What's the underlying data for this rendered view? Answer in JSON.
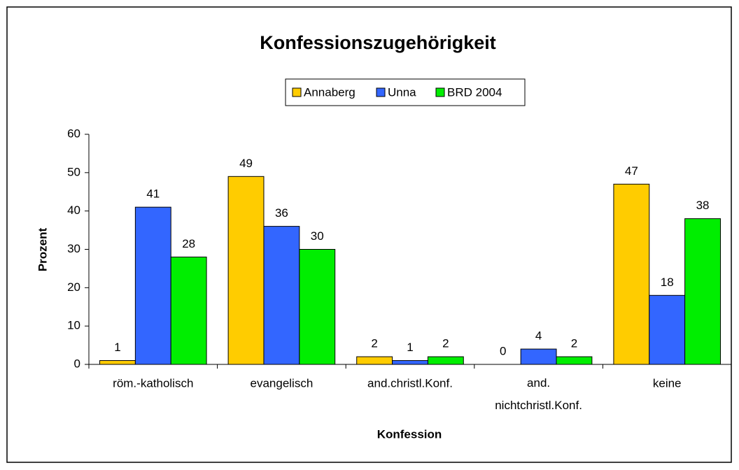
{
  "chart_data": {
    "type": "bar",
    "title": "Konfessionszugehörigkeit",
    "x_label": "Konfession",
    "y_label": "Prozent",
    "categories": [
      "röm.-katholisch",
      "evangelisch",
      "and.christl.Konf.",
      "and.\nnichtchristl.Konf.",
      "keine"
    ],
    "series": [
      {
        "name": "Annaberg",
        "color": "#ffcc00",
        "values": [
          1,
          49,
          2,
          0,
          47
        ]
      },
      {
        "name": "Unna",
        "color": "#3366ff",
        "values": [
          41,
          36,
          1,
          4,
          18
        ]
      },
      {
        "name": "BRD 2004",
        "color": "#00ee00",
        "values": [
          28,
          30,
          2,
          2,
          38
        ]
      }
    ],
    "ylim": [
      0,
      60
    ],
    "yticks": [
      0,
      10,
      20,
      30,
      40,
      50,
      60
    ],
    "legend": "top"
  }
}
